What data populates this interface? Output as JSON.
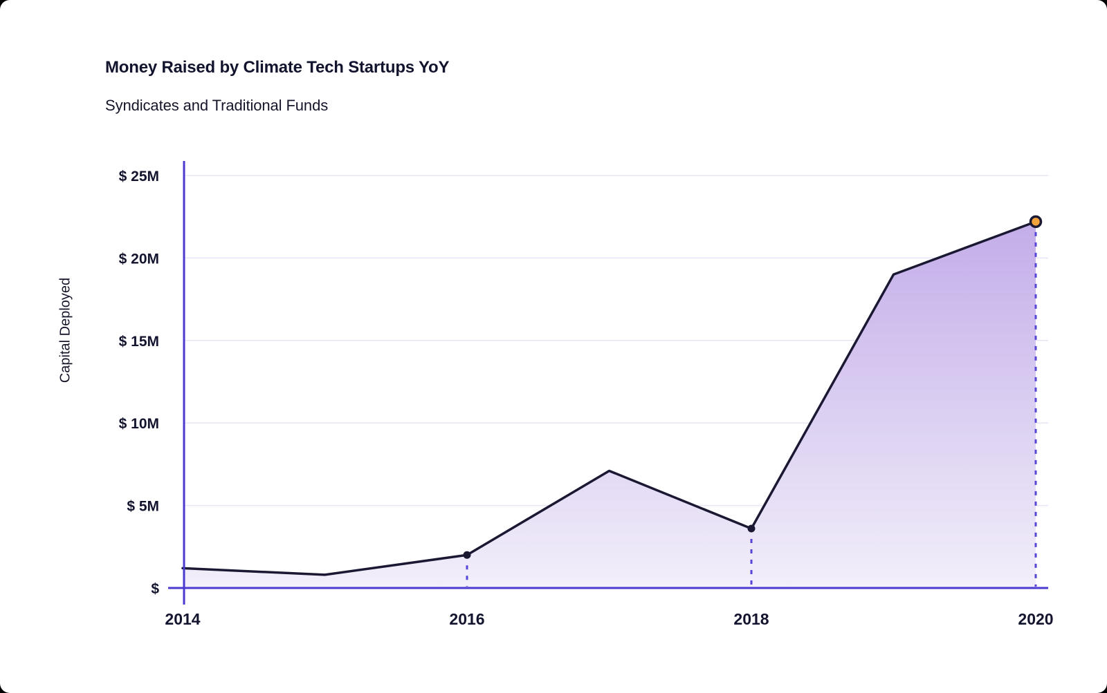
{
  "header": {
    "title": "Money Raised by Climate Tech Startups YoY",
    "subtitle": "Syndicates and Traditional Funds"
  },
  "chart_data": {
    "type": "area",
    "title": "Money Raised by Climate Tech Startups YoY",
    "subtitle": "Syndicates and Traditional Funds",
    "xlabel": "",
    "ylabel": "Capital Deployed",
    "x": [
      2014,
      2015,
      2016,
      2017,
      2018,
      2019,
      2020
    ],
    "series": [
      {
        "name": "Capital Deployed ($M)",
        "values": [
          1.2,
          0.8,
          2.0,
          7.1,
          3.6,
          19.0,
          22.2
        ]
      }
    ],
    "unit": "$M",
    "ylim": [
      0,
      25
    ],
    "y_tick_values": [
      0,
      5,
      10,
      15,
      20,
      25
    ],
    "y_tick_labels": [
      "$",
      "$ 5M",
      "$ 10M",
      "$ 15M",
      "$ 20M",
      "$ 25M"
    ],
    "x_tick_values": [
      2014,
      2016,
      2018,
      2020
    ],
    "x_tick_labels": [
      "2014",
      "2016",
      "2018",
      "2020"
    ],
    "marker_points": [
      2016,
      2018,
      2020
    ],
    "highlight_point": 2020,
    "grid": "horizontal",
    "legend": "none"
  },
  "colors": {
    "axis": "#4A3AD0",
    "grid": "#E9E3F6",
    "line": "#1A1832",
    "area_top": "#C3ADE9",
    "area_bottom": "#F2EFFA",
    "drop_line": "#5646D8",
    "marker": "#1A1832",
    "highlight_fill": "#F2A33C",
    "text": "#13142E"
  }
}
